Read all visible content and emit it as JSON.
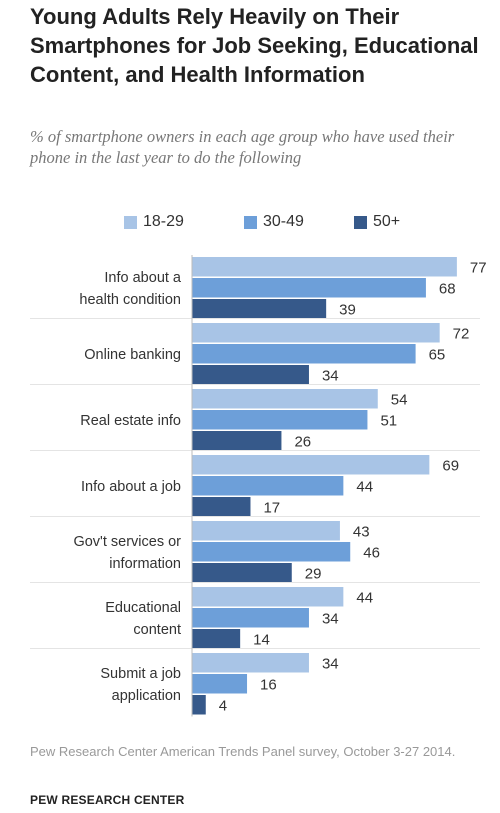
{
  "title": "Young Adults Rely Heavily on Their Smartphones for Job Seeking, Educational Content, and Health Information",
  "subtitle": "% of smartphone owners in each age group who have used their phone in the last year to do the following",
  "source": "Pew Research Center American Trends Panel survey, October 3-27 2014.",
  "brand": "PEW RESEARCH CENTER",
  "colors": {
    "s1829": "#a8c4e6",
    "s3049": "#6d9fd9",
    "s50": "#36598a",
    "grid": "#cfcfcf"
  },
  "chart_data": {
    "type": "bar",
    "orientation": "horizontal",
    "categories": [
      [
        "Info about a",
        "health condition"
      ],
      [
        "Online banking"
      ],
      [
        "Real estate info"
      ],
      [
        "Info about a job"
      ],
      [
        "Gov't services or",
        "information"
      ],
      [
        "Educational",
        "content"
      ],
      [
        "Submit a job",
        "application"
      ]
    ],
    "series": [
      {
        "name": "18-29",
        "values": [
          77,
          72,
          54,
          69,
          43,
          44,
          34
        ]
      },
      {
        "name": "30-49",
        "values": [
          68,
          65,
          51,
          44,
          46,
          34,
          16
        ]
      },
      {
        "name": "50+",
        "values": [
          39,
          34,
          26,
          17,
          29,
          14,
          4
        ]
      }
    ],
    "xlim": [
      0,
      100
    ],
    "grid": false,
    "legend": "top"
  }
}
